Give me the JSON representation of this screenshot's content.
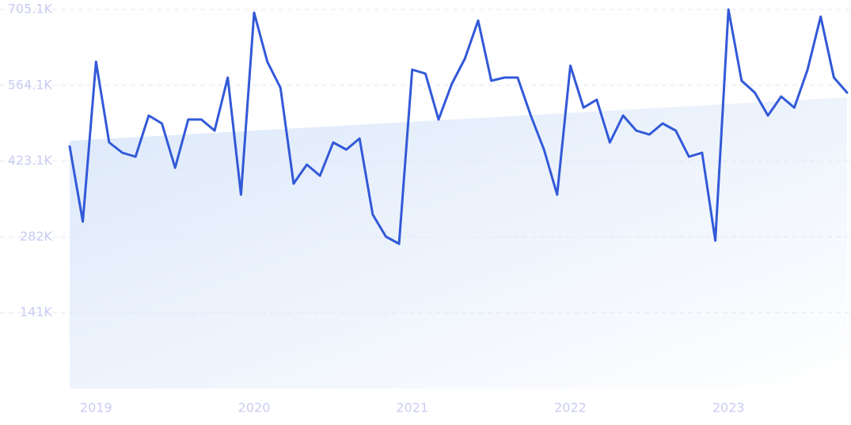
{
  "chart_data": {
    "type": "line",
    "categories": [
      null,
      null,
      "2019",
      null,
      null,
      null,
      null,
      null,
      null,
      null,
      null,
      null,
      null,
      null,
      "2020",
      null,
      null,
      null,
      null,
      null,
      null,
      null,
      null,
      null,
      null,
      null,
      "2021",
      null,
      null,
      null,
      null,
      null,
      null,
      null,
      null,
      null,
      null,
      null,
      "2022",
      null,
      null,
      null,
      null,
      null,
      null,
      null,
      null,
      null,
      null,
      null,
      "2023",
      null,
      null,
      null,
      null,
      null,
      null,
      null,
      null,
      null
    ],
    "values": [
      450400,
      310600,
      608000,
      457800,
      438700,
      431300,
      507900,
      493100,
      410700,
      500500,
      500500,
      479900,
      578500,
      360600,
      699200,
      608000,
      559400,
      381300,
      416600,
      396000,
      457800,
      444600,
      465200,
      323800,
      282600,
      269400,
      593200,
      585900,
      500500,
      566700,
      613800,
      684500,
      572600,
      578500,
      578500,
      507900,
      444600,
      360600,
      600600,
      522600,
      537300,
      457800,
      507900,
      479900,
      472500,
      493100,
      479900,
      431300,
      438700,
      275300,
      705100,
      572600,
      550500,
      507900,
      543200,
      522600,
      593200,
      691800,
      578500,
      550500
    ],
    "color": "#3259d8",
    "trend": [
      460700,
      541700
    ],
    "trend_color": "#dce8fa",
    "ylim": [
      0,
      705100
    ],
    "yticks": [
      {
        "value": 141020,
        "label": "141K"
      },
      {
        "value": 282040,
        "label": "282K"
      },
      {
        "value": 423060,
        "label": "423.1K"
      },
      {
        "value": 564080,
        "label": "564.1K"
      },
      {
        "value": 705100,
        "label": "705.1K"
      }
    ],
    "grid": true
  }
}
